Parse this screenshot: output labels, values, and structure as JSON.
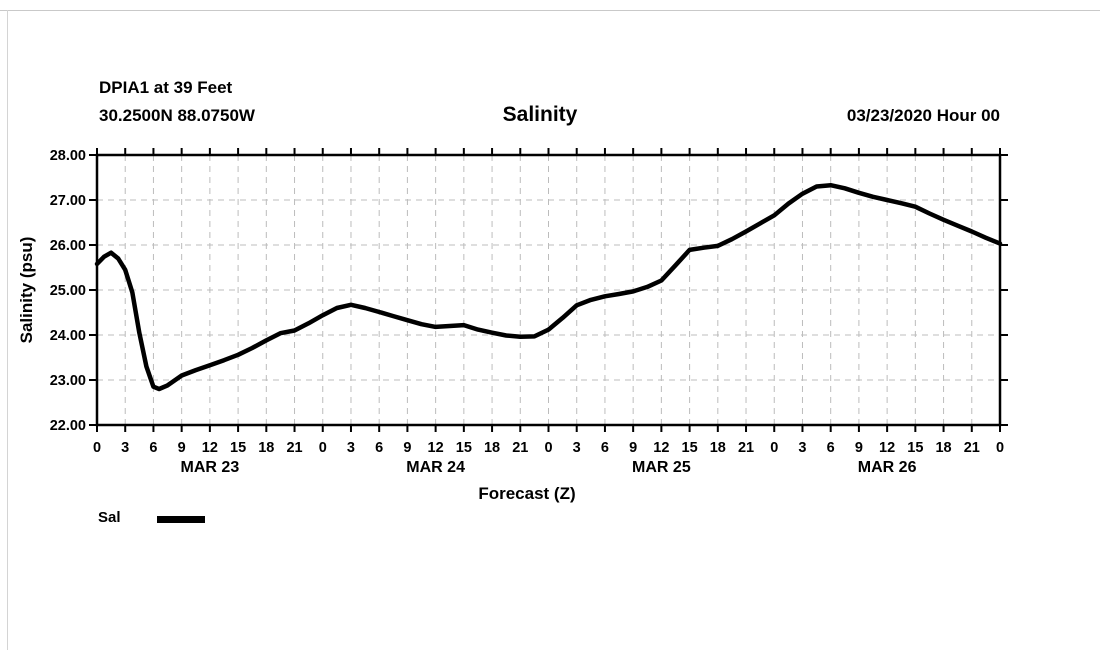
{
  "header": {
    "station": "DPIA1 at 39 Feet",
    "coordinates": "30.2500N 88.0750W",
    "datestamp": "03/23/2020 Hour 00"
  },
  "colors": {
    "foreground": "#000000",
    "background": "#ffffff",
    "grid": "#bcbcbc"
  },
  "chart_data": {
    "type": "line",
    "title": "Salinity",
    "xlabel": "Forecast (Z)",
    "ylabel": "Salinity (psu)",
    "xlim": [
      0,
      96
    ],
    "ylim": [
      22,
      28
    ],
    "grid": "dashed",
    "legend_position": "below-left",
    "y_ticks": [
      "22.00",
      "23.00",
      "24.00",
      "25.00",
      "26.00",
      "27.00",
      "28.00"
    ],
    "x_tick_step_hours": 3,
    "x_tick_labels": [
      "0",
      "3",
      "6",
      "9",
      "12",
      "15",
      "18",
      "21",
      "0",
      "3",
      "6",
      "9",
      "12",
      "15",
      "18",
      "21",
      "0",
      "3",
      "6",
      "9",
      "12",
      "15",
      "18",
      "21",
      "0",
      "3",
      "6",
      "9",
      "12",
      "15",
      "18",
      "21",
      "0"
    ],
    "day_labels": [
      {
        "label": "MAR 23",
        "center_hour": 12
      },
      {
        "label": "MAR 24",
        "center_hour": 36
      },
      {
        "label": "MAR 25",
        "center_hour": 60
      },
      {
        "label": "MAR 26",
        "center_hour": 84
      }
    ],
    "legend": [
      {
        "name": "Sal",
        "color": "#000000"
      }
    ],
    "series": [
      {
        "name": "Sal",
        "points": [
          [
            0,
            25.58
          ],
          [
            0.75,
            25.74
          ],
          [
            1.5,
            25.83
          ],
          [
            2.25,
            25.7
          ],
          [
            3,
            25.45
          ],
          [
            3.75,
            24.95
          ],
          [
            4.5,
            24.05
          ],
          [
            5.25,
            23.3
          ],
          [
            6,
            22.85
          ],
          [
            6.6,
            22.8
          ],
          [
            7.5,
            22.88
          ],
          [
            9,
            23.1
          ],
          [
            10.5,
            23.22
          ],
          [
            12,
            23.33
          ],
          [
            13.5,
            23.44
          ],
          [
            15,
            23.56
          ],
          [
            16.5,
            23.71
          ],
          [
            18,
            23.88
          ],
          [
            19.5,
            24.04
          ],
          [
            21,
            24.1
          ],
          [
            22.5,
            24.26
          ],
          [
            24,
            24.44
          ],
          [
            25.5,
            24.6
          ],
          [
            27,
            24.67
          ],
          [
            28.5,
            24.6
          ],
          [
            30,
            24.51
          ],
          [
            31.5,
            24.42
          ],
          [
            33,
            24.33
          ],
          [
            34.5,
            24.24
          ],
          [
            36,
            24.18
          ],
          [
            37.5,
            24.2
          ],
          [
            39,
            24.22
          ],
          [
            40.5,
            24.12
          ],
          [
            42,
            24.05
          ],
          [
            43.5,
            23.99
          ],
          [
            45,
            23.96
          ],
          [
            46.5,
            23.97
          ],
          [
            48,
            24.12
          ],
          [
            49.5,
            24.38
          ],
          [
            51,
            24.66
          ],
          [
            52.5,
            24.78
          ],
          [
            54,
            24.86
          ],
          [
            55.5,
            24.91
          ],
          [
            57,
            24.97
          ],
          [
            58.5,
            25.07
          ],
          [
            60,
            25.21
          ],
          [
            61.5,
            25.55
          ],
          [
            63,
            25.89
          ],
          [
            64.5,
            25.94
          ],
          [
            66,
            25.98
          ],
          [
            67.5,
            26.13
          ],
          [
            69,
            26.3
          ],
          [
            70.5,
            26.48
          ],
          [
            72,
            26.66
          ],
          [
            73.5,
            26.92
          ],
          [
            75,
            27.14
          ],
          [
            76.5,
            27.3
          ],
          [
            78,
            27.33
          ],
          [
            79.5,
            27.26
          ],
          [
            81,
            27.16
          ],
          [
            82.5,
            27.07
          ],
          [
            84,
            27.0
          ],
          [
            85.5,
            26.93
          ],
          [
            87,
            26.85
          ],
          [
            88.5,
            26.7
          ],
          [
            90,
            26.56
          ],
          [
            91.5,
            26.43
          ],
          [
            93,
            26.3
          ],
          [
            94.5,
            26.16
          ],
          [
            96,
            26.03
          ]
        ]
      }
    ]
  }
}
